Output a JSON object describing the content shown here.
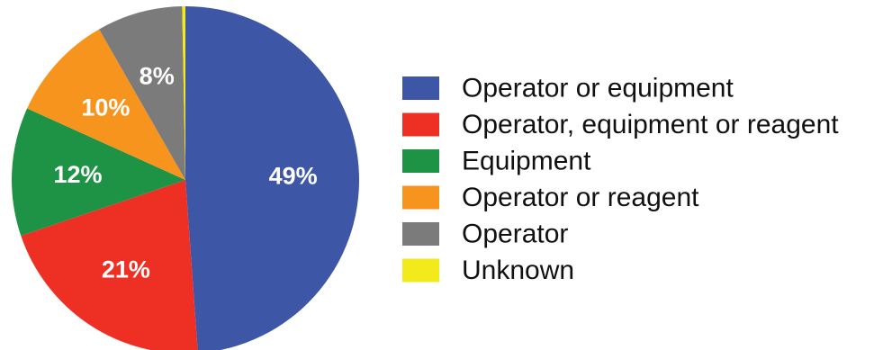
{
  "chart_data": {
    "type": "pie",
    "title": "",
    "start": "12 o'clock",
    "direction": "clockwise",
    "slices": [
      {
        "label": "Operator or equipment",
        "value": 49,
        "value_label": "49%",
        "color": "#3D57A6"
      },
      {
        "label": "Operator, equipment or reagent",
        "value": 21,
        "value_label": "21%",
        "color": "#EE3024"
      },
      {
        "label": "Equipment",
        "value": 12,
        "value_label": "12%",
        "color": "#1E9245"
      },
      {
        "label": "Operator or reagent",
        "value": 10,
        "value_label": "10%",
        "color": "#F7941D"
      },
      {
        "label": "Operator",
        "value": 8,
        "value_label": "8%",
        "color": "#7B7B7B"
      },
      {
        "label": "Unknown",
        "value": 0.3,
        "value_label": "",
        "color": "#F2EA1A"
      }
    ],
    "legend": {
      "placement": "right",
      "entries": [
        "Operator or equipment",
        "Operator, equipment or reagent",
        "Equipment",
        "Operator or reagent",
        "Operator",
        "Unknown"
      ]
    }
  }
}
